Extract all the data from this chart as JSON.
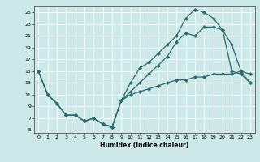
{
  "xlabel": "Humidex (Indice chaleur)",
  "bg_color": "#cce8e8",
  "line_color": "#2a6b6b",
  "grid_color": "#ffffff",
  "xlim": [
    -0.5,
    23.5
  ],
  "ylim": [
    4.5,
    26.0
  ],
  "yticks": [
    5,
    7,
    9,
    11,
    13,
    15,
    17,
    19,
    21,
    23,
    25
  ],
  "xticks": [
    0,
    1,
    2,
    3,
    4,
    5,
    6,
    7,
    8,
    9,
    10,
    11,
    12,
    13,
    14,
    15,
    16,
    17,
    18,
    19,
    20,
    21,
    22,
    23
  ],
  "line1_x": [
    0,
    1,
    2,
    3,
    4,
    5,
    6,
    7,
    8,
    9,
    10,
    11,
    12,
    13,
    14,
    15,
    16,
    17,
    18,
    19,
    20,
    21,
    22,
    23
  ],
  "line1_y": [
    15,
    11,
    9.5,
    7.5,
    7.5,
    6.5,
    7.0,
    6.0,
    5.5,
    10.0,
    13.0,
    15.5,
    16.5,
    18.0,
    19.5,
    21.0,
    24.0,
    25.5,
    25.0,
    24.0,
    22.0,
    15.0,
    14.5,
    13.0
  ],
  "line2_x": [
    0,
    1,
    2,
    3,
    4,
    5,
    6,
    7,
    8,
    9,
    10,
    11,
    12,
    13,
    14,
    15,
    16,
    17,
    18,
    19,
    20,
    21,
    22,
    23
  ],
  "line2_y": [
    15,
    11,
    9.5,
    7.5,
    7.5,
    6.5,
    7.0,
    6.0,
    5.5,
    10.0,
    11.5,
    13.0,
    14.5,
    16.0,
    17.5,
    20.0,
    21.5,
    21.0,
    22.5,
    22.5,
    22.0,
    19.5,
    15.0,
    14.5
  ],
  "line3_x": [
    0,
    1,
    2,
    3,
    4,
    5,
    6,
    7,
    8,
    9,
    10,
    11,
    12,
    13,
    14,
    15,
    16,
    17,
    18,
    19,
    20,
    21,
    22,
    23
  ],
  "line3_y": [
    15,
    11,
    9.5,
    7.5,
    7.5,
    6.5,
    7.0,
    6.0,
    5.5,
    10.0,
    11.0,
    11.5,
    12.0,
    12.5,
    13.0,
    13.5,
    13.5,
    14.0,
    14.0,
    14.5,
    14.5,
    14.5,
    15.0,
    13.0
  ],
  "xlabel_fontsize": 5.5,
  "tick_fontsize": 4.5,
  "linewidth": 0.9,
  "markersize": 2.2
}
